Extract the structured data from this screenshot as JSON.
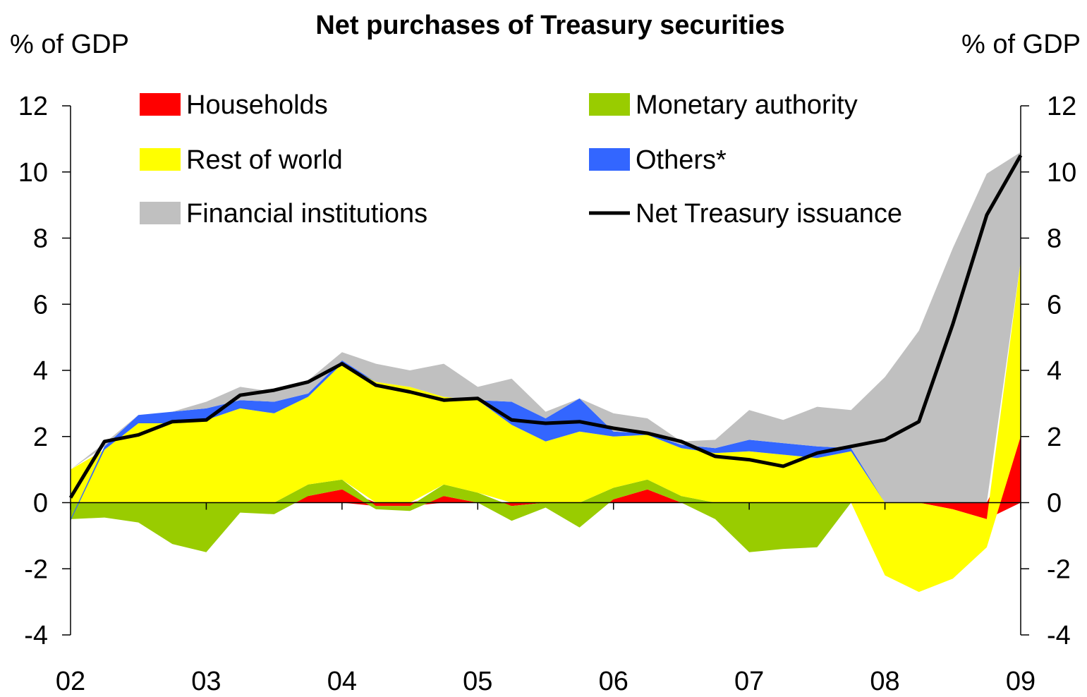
{
  "chart_data": {
    "type": "area",
    "title": "Net purchases of Treasury securities",
    "ylabel_left": "% of GDP",
    "ylabel_right": "% of GDP",
    "ylim": [
      -4,
      12
    ],
    "yticks": [
      -4,
      -2,
      0,
      2,
      4,
      6,
      8,
      10,
      12
    ],
    "xlim": [
      2002,
      2009
    ],
    "xticks": [
      {
        "value": 2002,
        "label": "02"
      },
      {
        "value": 2003,
        "label": "03"
      },
      {
        "value": 2004,
        "label": "04"
      },
      {
        "value": 2005,
        "label": "05"
      },
      {
        "value": 2006,
        "label": "06"
      },
      {
        "value": 2007,
        "label": "07"
      },
      {
        "value": 2008,
        "label": "08"
      },
      {
        "value": 2009,
        "label": "09"
      }
    ],
    "x": [
      2002.0,
      2002.25,
      2002.5,
      2002.75,
      2003.0,
      2003.25,
      2003.5,
      2003.75,
      2004.0,
      2004.25,
      2004.5,
      2004.75,
      2005.0,
      2005.25,
      2005.5,
      2005.75,
      2006.0,
      2006.25,
      2006.5,
      2006.75,
      2007.0,
      2007.25,
      2007.5,
      2007.75,
      2008.0,
      2008.25,
      2008.5,
      2008.75,
      2009.0
    ],
    "series": [
      {
        "name": "Households",
        "color": "#ff0000",
        "values": [
          0.0,
          0.0,
          0.0,
          0.0,
          0.0,
          0.0,
          0.0,
          0.2,
          0.4,
          -0.1,
          -0.1,
          0.2,
          0.0,
          -0.1,
          0.0,
          0.0,
          0.1,
          0.4,
          0.0,
          0.0,
          0.0,
          0.0,
          0.0,
          0.0,
          0.0,
          0.0,
          -0.2,
          -0.5,
          2.0
        ]
      },
      {
        "name": "Monetary authority",
        "color": "#99cc00",
        "values": [
          -0.5,
          -0.45,
          -0.6,
          -1.25,
          -1.5,
          -0.3,
          -0.35,
          0.35,
          0.3,
          -0.1,
          -0.15,
          0.35,
          0.3,
          -0.45,
          -0.15,
          -0.75,
          0.35,
          0.3,
          0.2,
          -0.5,
          -1.5,
          -1.4,
          -1.35,
          0.0,
          0.0,
          0.0,
          0.0,
          0.0,
          0.0
        ]
      },
      {
        "name": "Rest of world",
        "color": "#ffff00",
        "values": [
          1.0,
          1.6,
          2.4,
          2.4,
          2.5,
          2.85,
          2.7,
          2.65,
          3.5,
          3.65,
          3.5,
          2.65,
          2.8,
          2.35,
          1.85,
          2.15,
          1.55,
          1.35,
          1.45,
          1.5,
          1.55,
          1.45,
          1.35,
          1.55,
          -2.2,
          -2.7,
          -2.1,
          -0.85,
          5.3
        ]
      },
      {
        "name": "Others*",
        "color": "#3366ff",
        "values": [
          -0.05,
          0.1,
          0.25,
          0.35,
          0.35,
          0.25,
          0.35,
          0.1,
          0.1,
          0.0,
          0.0,
          0.0,
          0.0,
          0.7,
          0.7,
          1.0,
          0.15,
          0.05,
          0.1,
          0.15,
          0.35,
          0.35,
          0.35,
          0.1,
          0.0,
          0.0,
          0.0,
          0.0,
          0.0
        ]
      },
      {
        "name": "Financial institutions",
        "color": "#c0c0c0",
        "values": [
          0.0,
          0.1,
          0.0,
          0.0,
          0.2,
          0.4,
          0.3,
          0.4,
          0.25,
          0.55,
          0.5,
          1.0,
          0.4,
          0.7,
          0.2,
          0.0,
          0.55,
          0.45,
          0.1,
          0.25,
          0.9,
          0.7,
          1.2,
          1.15,
          3.8,
          5.2,
          7.7,
          9.95,
          3.3
        ]
      }
    ],
    "line": {
      "name": "Net Treasury issuance",
      "color": "#000000",
      "values": [
        0.15,
        1.85,
        2.05,
        2.45,
        2.5,
        3.25,
        3.4,
        3.65,
        4.2,
        3.55,
        3.35,
        3.1,
        3.15,
        2.5,
        2.4,
        2.45,
        2.25,
        2.1,
        1.85,
        1.4,
        1.3,
        1.1,
        1.5,
        1.7,
        1.9,
        2.45,
        5.4,
        8.7,
        10.5
      ]
    },
    "legend": {
      "placement": "top"
    }
  }
}
